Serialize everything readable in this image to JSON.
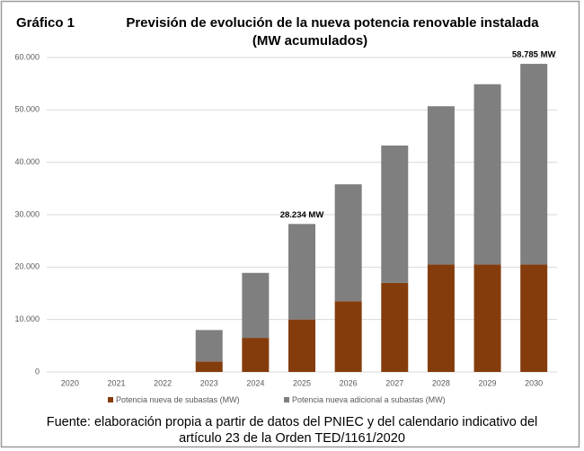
{
  "chart_data": {
    "type": "stacked_bar",
    "figure_label": "Gráfico 1",
    "title": [
      "Previsión de evolución de la nueva potencia renovable instalada",
      "(MW acumulados)"
    ],
    "categories": [
      "2020",
      "2021",
      "2022",
      "2023",
      "2024",
      "2025",
      "2026",
      "2027",
      "2028",
      "2029",
      "2030"
    ],
    "series": [
      {
        "name": "Potencia nueva de subastas (MW)",
        "color": "#843c0c",
        "values": [
          0,
          0,
          0,
          2000,
          6500,
          10000,
          13500,
          17000,
          20500,
          20500,
          20500
        ]
      },
      {
        "name": "Potencia nueva adicional a subastas (MW)",
        "color": "#7f7f7f",
        "values": [
          0,
          0,
          0,
          6000,
          12400,
          18234,
          22300,
          26200,
          30200,
          34400,
          38285
        ]
      }
    ],
    "annotations": [
      {
        "x": "2025",
        "value": 28234,
        "text": "28.234 MW"
      },
      {
        "x": "2030",
        "value": 58785,
        "text": "58.785 MW"
      }
    ],
    "ylim": [
      0,
      60000
    ],
    "yticks": [
      0,
      {
        "value": 10000,
        "label": "10.000"
      },
      {
        "value": 20000,
        "label": "20.000"
      },
      {
        "value": 30000,
        "label": "30.000"
      },
      {
        "value": 40000,
        "label": "40.000"
      },
      {
        "value": 50000,
        "label": "50.000"
      },
      {
        "value": 60000,
        "label": "60.000"
      }
    ],
    "grid": true,
    "legend": "bottom",
    "source": [
      "Fuente: elaboración propia a partir de datos del PNIEC y del calendario indicativo del",
      "artículo 23 de la Orden TED/1161/2020"
    ]
  }
}
